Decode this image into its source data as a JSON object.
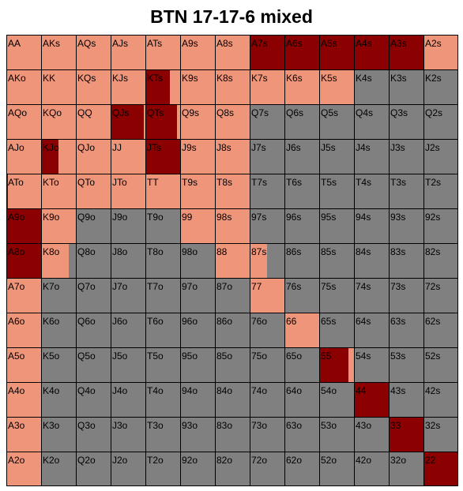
{
  "title": "BTN 17-17-6 mixed",
  "colors": {
    "raise": "#8b0000",
    "call": "#ef957a",
    "fold": "#808080"
  },
  "chart_data": {
    "type": "heatmap",
    "title": "BTN 17-17-6 mixed",
    "value_description": "fraction of each hand: raise / call / fold",
    "hands": [
      [
        "AA",
        "AKs",
        "AQs",
        "AJs",
        "ATs",
        "A9s",
        "A8s",
        "A7s",
        "A6s",
        "A5s",
        "A4s",
        "A3s",
        "A2s"
      ],
      [
        "AKo",
        "KK",
        "KQs",
        "KJs",
        "KTs",
        "K9s",
        "K8s",
        "K7s",
        "K6s",
        "K5s",
        "K4s",
        "K3s",
        "K2s"
      ],
      [
        "AQo",
        "KQo",
        "QQ",
        "QJs",
        "QTs",
        "Q9s",
        "Q8s",
        "Q7s",
        "Q6s",
        "Q5s",
        "Q4s",
        "Q3s",
        "Q2s"
      ],
      [
        "AJo",
        "KJo",
        "QJo",
        "JJ",
        "JTs",
        "J9s",
        "J8s",
        "J7s",
        "J6s",
        "J5s",
        "J4s",
        "J3s",
        "J2s"
      ],
      [
        "ATo",
        "KTo",
        "QTo",
        "JTo",
        "TT",
        "T9s",
        "T8s",
        "T7s",
        "T6s",
        "T5s",
        "T4s",
        "T3s",
        "T2s"
      ],
      [
        "A9o",
        "K9o",
        "Q9o",
        "J9o",
        "T9o",
        "99",
        "98s",
        "97s",
        "96s",
        "95s",
        "94s",
        "93s",
        "92s"
      ],
      [
        "A8o",
        "K8o",
        "Q8o",
        "J8o",
        "T8o",
        "98o",
        "88",
        "87s",
        "86s",
        "85s",
        "84s",
        "83s",
        "82s"
      ],
      [
        "A7o",
        "K7o",
        "Q7o",
        "J7o",
        "T7o",
        "97o",
        "87o",
        "77",
        "76s",
        "75s",
        "74s",
        "73s",
        "72s"
      ],
      [
        "A6o",
        "K6o",
        "Q6o",
        "J6o",
        "T6o",
        "96o",
        "86o",
        "76o",
        "66",
        "65s",
        "64s",
        "63s",
        "62s"
      ],
      [
        "A5o",
        "K5o",
        "Q5o",
        "J5o",
        "T5o",
        "95o",
        "85o",
        "75o",
        "65o",
        "55",
        "54s",
        "53s",
        "52s"
      ],
      [
        "A4o",
        "K4o",
        "Q4o",
        "J4o",
        "T4o",
        "94o",
        "84o",
        "74o",
        "64o",
        "54o",
        "44",
        "43s",
        "42s"
      ],
      [
        "A3o",
        "K3o",
        "Q3o",
        "J3o",
        "T3o",
        "93o",
        "83o",
        "73o",
        "63o",
        "53o",
        "43o",
        "33",
        "32s"
      ],
      [
        "A2o",
        "K2o",
        "Q2o",
        "J2o",
        "T2o",
        "92o",
        "82o",
        "72o",
        "62o",
        "52o",
        "42o",
        "32o",
        "22"
      ]
    ],
    "cells": [
      [
        [
          0,
          1,
          0
        ],
        [
          0,
          1,
          0
        ],
        [
          0,
          1,
          0
        ],
        [
          0,
          1,
          0
        ],
        [
          0,
          1,
          0
        ],
        [
          0,
          1,
          0
        ],
        [
          0,
          1,
          0
        ],
        [
          1,
          0,
          0
        ],
        [
          1,
          0,
          0
        ],
        [
          1,
          0,
          0
        ],
        [
          1,
          0,
          0
        ],
        [
          1,
          0,
          0
        ],
        [
          0,
          1,
          0
        ]
      ],
      [
        [
          0,
          1,
          0
        ],
        [
          0,
          1,
          0
        ],
        [
          0,
          1,
          0
        ],
        [
          0,
          1,
          0
        ],
        [
          0.7,
          0.3,
          0
        ],
        [
          0,
          1,
          0
        ],
        [
          0,
          1,
          0
        ],
        [
          0,
          1,
          0
        ],
        [
          0,
          1,
          0
        ],
        [
          0,
          1,
          0
        ],
        [
          0,
          0,
          1
        ],
        [
          0,
          0,
          1
        ],
        [
          0,
          0,
          1
        ]
      ],
      [
        [
          0,
          1,
          0
        ],
        [
          0,
          1,
          0
        ],
        [
          0,
          1,
          0
        ],
        [
          0.95,
          0.05,
          0
        ],
        [
          0.9,
          0.1,
          0
        ],
        [
          0,
          1,
          0
        ],
        [
          0,
          1,
          0
        ],
        [
          0,
          0,
          1
        ],
        [
          0,
          0,
          1
        ],
        [
          0,
          0,
          1
        ],
        [
          0,
          0,
          1
        ],
        [
          0,
          0,
          1
        ],
        [
          0,
          0,
          1
        ]
      ],
      [
        [
          0,
          1,
          0
        ],
        [
          0.5,
          0.5,
          0
        ],
        [
          0,
          1,
          0
        ],
        [
          0,
          1,
          0
        ],
        [
          1,
          0,
          0
        ],
        [
          0,
          1,
          0
        ],
        [
          0,
          1,
          0
        ],
        [
          0,
          0,
          1
        ],
        [
          0,
          0,
          1
        ],
        [
          0,
          0,
          1
        ],
        [
          0,
          0,
          1
        ],
        [
          0,
          0,
          1
        ],
        [
          0,
          0,
          1
        ]
      ],
      [
        [
          0.05,
          0.95,
          0
        ],
        [
          0,
          1,
          0
        ],
        [
          0,
          1,
          0
        ],
        [
          0,
          1,
          0
        ],
        [
          0,
          1,
          0
        ],
        [
          0,
          1,
          0
        ],
        [
          0,
          1,
          0
        ],
        [
          0,
          0,
          1
        ],
        [
          0,
          0,
          1
        ],
        [
          0,
          0,
          1
        ],
        [
          0,
          0,
          1
        ],
        [
          0,
          0,
          1
        ],
        [
          0,
          0,
          1
        ]
      ],
      [
        [
          1,
          0,
          0
        ],
        [
          0,
          1,
          0
        ],
        [
          0,
          0,
          1
        ],
        [
          0,
          0,
          1
        ],
        [
          0,
          0,
          1
        ],
        [
          0,
          1,
          0
        ],
        [
          0,
          1,
          0
        ],
        [
          0,
          0,
          1
        ],
        [
          0,
          0,
          1
        ],
        [
          0,
          0,
          1
        ],
        [
          0,
          0,
          1
        ],
        [
          0,
          0,
          1
        ],
        [
          0,
          0,
          1
        ]
      ],
      [
        [
          1,
          0,
          0
        ],
        [
          0,
          0.8,
          0.2
        ],
        [
          0,
          0,
          1
        ],
        [
          0,
          0,
          1
        ],
        [
          0,
          0,
          1
        ],
        [
          0,
          0,
          1
        ],
        [
          0,
          1,
          0
        ],
        [
          0,
          0.5,
          0.5
        ],
        [
          0,
          0,
          1
        ],
        [
          0,
          0,
          1
        ],
        [
          0,
          0,
          1
        ],
        [
          0,
          0,
          1
        ],
        [
          0,
          0,
          1
        ]
      ],
      [
        [
          0,
          1,
          0
        ],
        [
          0,
          0,
          1
        ],
        [
          0,
          0,
          1
        ],
        [
          0,
          0,
          1
        ],
        [
          0,
          0,
          1
        ],
        [
          0,
          0,
          1
        ],
        [
          0,
          0,
          1
        ],
        [
          0,
          1,
          0
        ],
        [
          0,
          0,
          1
        ],
        [
          0,
          0,
          1
        ],
        [
          0,
          0,
          1
        ],
        [
          0,
          0,
          1
        ],
        [
          0,
          0,
          1
        ]
      ],
      [
        [
          0,
          1,
          0
        ],
        [
          0,
          0,
          1
        ],
        [
          0,
          0,
          1
        ],
        [
          0,
          0,
          1
        ],
        [
          0,
          0,
          1
        ],
        [
          0,
          0,
          1
        ],
        [
          0,
          0,
          1
        ],
        [
          0,
          0,
          1
        ],
        [
          0,
          1,
          0
        ],
        [
          0,
          0,
          1
        ],
        [
          0,
          0,
          1
        ],
        [
          0,
          0,
          1
        ],
        [
          0,
          0,
          1
        ]
      ],
      [
        [
          0,
          1,
          0
        ],
        [
          0,
          0,
          1
        ],
        [
          0,
          0,
          1
        ],
        [
          0,
          0,
          1
        ],
        [
          0,
          0,
          1
        ],
        [
          0,
          0,
          1
        ],
        [
          0,
          0,
          1
        ],
        [
          0,
          0,
          1
        ],
        [
          0,
          0,
          1
        ],
        [
          0.85,
          0.15,
          0
        ],
        [
          0,
          0,
          1
        ],
        [
          0,
          0,
          1
        ],
        [
          0,
          0,
          1
        ]
      ],
      [
        [
          0,
          1,
          0
        ],
        [
          0,
          0,
          1
        ],
        [
          0,
          0,
          1
        ],
        [
          0,
          0,
          1
        ],
        [
          0,
          0,
          1
        ],
        [
          0,
          0,
          1
        ],
        [
          0,
          0,
          1
        ],
        [
          0,
          0,
          1
        ],
        [
          0,
          0,
          1
        ],
        [
          0,
          0,
          1
        ],
        [
          1,
          0,
          0
        ],
        [
          0,
          0,
          1
        ],
        [
          0,
          0,
          1
        ]
      ],
      [
        [
          0,
          1,
          0
        ],
        [
          0,
          0,
          1
        ],
        [
          0,
          0,
          1
        ],
        [
          0,
          0,
          1
        ],
        [
          0,
          0,
          1
        ],
        [
          0,
          0,
          1
        ],
        [
          0,
          0,
          1
        ],
        [
          0,
          0,
          1
        ],
        [
          0,
          0,
          1
        ],
        [
          0,
          0,
          1
        ],
        [
          0,
          0,
          1
        ],
        [
          1,
          0,
          0
        ],
        [
          0,
          0,
          1
        ]
      ],
      [
        [
          0,
          1,
          0
        ],
        [
          0,
          0,
          1
        ],
        [
          0,
          0,
          1
        ],
        [
          0,
          0,
          1
        ],
        [
          0,
          0,
          1
        ],
        [
          0,
          0,
          1
        ],
        [
          0,
          0,
          1
        ],
        [
          0,
          0,
          1
        ],
        [
          0,
          0,
          1
        ],
        [
          0,
          0,
          1
        ],
        [
          0,
          0,
          1
        ],
        [
          0,
          0,
          1
        ],
        [
          1,
          0,
          0
        ]
      ]
    ]
  }
}
